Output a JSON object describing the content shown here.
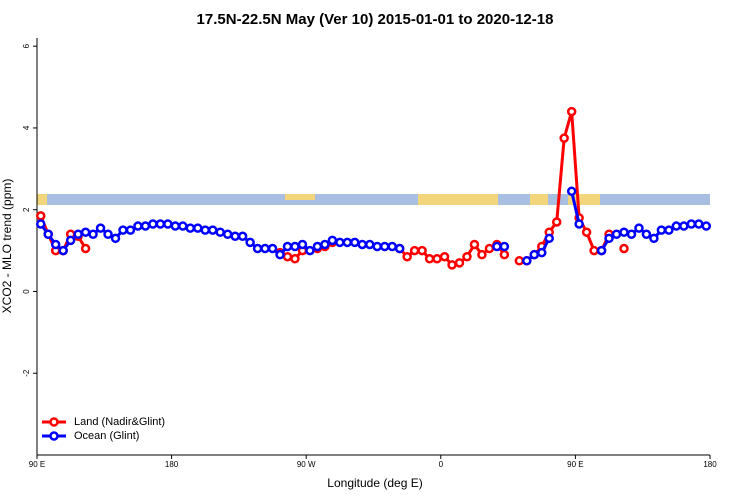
{
  "chart_data": {
    "type": "line",
    "title": "17.5N-22.5N May (Ver 10)   2015-01-01 to 2020-12-18",
    "x_label": "Longitude (deg E)",
    "y_label": "XCO2 - MLO trend (ppm)",
    "xlim": [
      90,
      540
    ],
    "ylim": [
      -4,
      6.2
    ],
    "xticks": [
      {
        "value": 90,
        "label": "90 E"
      },
      {
        "value": 180,
        "label": "180"
      },
      {
        "value": 270,
        "label": "90 W"
      },
      {
        "value": 360,
        "label": "0"
      },
      {
        "value": 450,
        "label": "90 E"
      },
      {
        "value": 540,
        "label": "180"
      }
    ],
    "yticks": [
      -2,
      0,
      2,
      4,
      6
    ],
    "legend": "bottom-left",
    "x": [
      92.5,
      97.5,
      102.5,
      107.5,
      112.5,
      117.5,
      122.5,
      127.5,
      132.5,
      137.5,
      142.5,
      147.5,
      152.5,
      157.5,
      162.5,
      167.5,
      172.5,
      177.5,
      182.5,
      187.5,
      192.5,
      197.5,
      202.5,
      207.5,
      212.5,
      217.5,
      222.5,
      227.5,
      232.5,
      237.5,
      242.5,
      247.5,
      252.5,
      257.5,
      262.5,
      267.5,
      272.5,
      277.5,
      282.5,
      287.5,
      292.5,
      297.5,
      302.5,
      307.5,
      312.5,
      317.5,
      322.5,
      327.5,
      332.5,
      337.5,
      342.5,
      347.5,
      352.5,
      357.5,
      362.5,
      367.5,
      372.5,
      377.5,
      382.5,
      387.5,
      392.5,
      397.5,
      402.5,
      407.5,
      412.5,
      417.5,
      422.5,
      427.5,
      432.5,
      437.5,
      442.5,
      447.5,
      452.5,
      457.5,
      462.5,
      467.5,
      472.5,
      477.5,
      482.5,
      487.5,
      492.5,
      497.5,
      502.5,
      507.5,
      512.5,
      517.5,
      522.5,
      527.5,
      532.5,
      537.5
    ],
    "series": [
      {
        "name": "Land (Nadir&Glint)",
        "color": "#ff0000",
        "values": [
          1.85,
          1.4,
          1.0,
          1.0,
          1.4,
          1.35,
          1.05,
          null,
          null,
          null,
          null,
          null,
          null,
          null,
          null,
          null,
          null,
          null,
          null,
          null,
          null,
          null,
          null,
          null,
          null,
          null,
          null,
          null,
          null,
          null,
          null,
          null,
          0.95,
          0.85,
          0.8,
          1.0,
          null,
          1.05,
          1.1,
          1.2,
          null,
          null,
          null,
          null,
          null,
          null,
          null,
          null,
          1.05,
          0.85,
          1.0,
          1.0,
          0.8,
          0.8,
          0.85,
          0.65,
          0.7,
          0.85,
          1.15,
          0.9,
          1.05,
          1.15,
          0.9,
          null,
          0.75,
          0.75,
          0.9,
          1.1,
          1.45,
          1.7,
          3.75,
          4.4,
          1.8,
          1.45,
          1.0,
          1.0,
          1.4,
          null,
          1.05,
          null,
          null,
          null,
          null,
          null,
          null,
          null,
          null,
          null,
          null,
          null
        ]
      },
      {
        "name": "Ocean (Glint)",
        "color": "#0000ff",
        "values": [
          1.65,
          1.4,
          1.15,
          1.0,
          1.25,
          1.4,
          1.45,
          1.4,
          1.55,
          1.4,
          1.3,
          1.5,
          1.5,
          1.6,
          1.6,
          1.65,
          1.65,
          1.65,
          1.6,
          1.6,
          1.55,
          1.55,
          1.5,
          1.5,
          1.45,
          1.4,
          1.35,
          1.35,
          1.2,
          1.05,
          1.05,
          1.05,
          0.9,
          1.1,
          1.1,
          1.15,
          1.0,
          1.1,
          1.15,
          1.25,
          1.2,
          1.2,
          1.2,
          1.15,
          1.15,
          1.1,
          1.1,
          1.1,
          1.05,
          null,
          null,
          null,
          null,
          null,
          null,
          null,
          null,
          null,
          null,
          null,
          null,
          1.1,
          1.1,
          null,
          null,
          0.75,
          0.9,
          0.95,
          1.3,
          null,
          null,
          2.45,
          1.65,
          null,
          null,
          1.0,
          1.3,
          1.4,
          1.45,
          1.4,
          1.55,
          1.4,
          1.3,
          1.5,
          1.5,
          1.6,
          1.6,
          1.65,
          1.65,
          1.6
        ]
      }
    ]
  }
}
